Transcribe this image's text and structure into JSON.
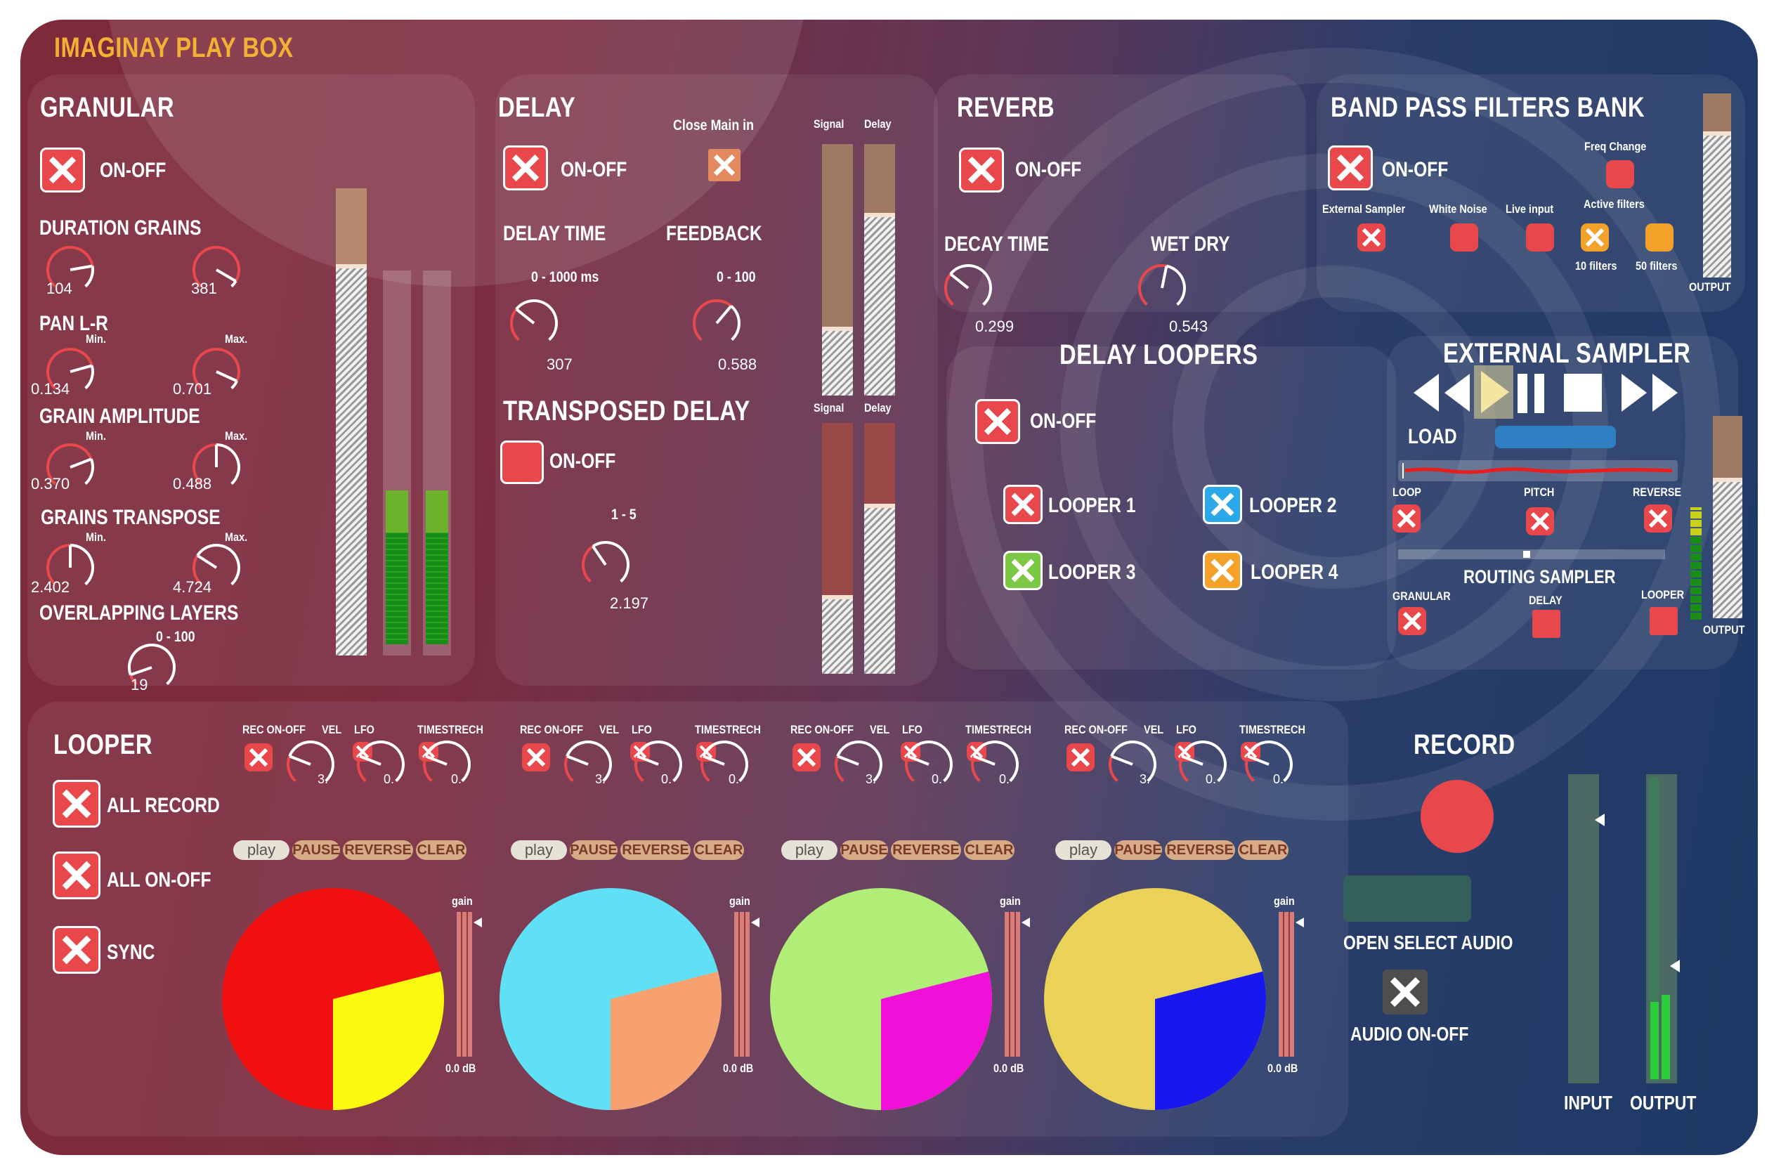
{
  "app_title": "IMAGINAY PLAY BOX",
  "granular": {
    "title": "GRANULAR",
    "on_off": "ON-OFF",
    "duration_grains": "DURATION GRAINS",
    "dur_min": "104",
    "dur_max": "381",
    "pan": "PAN L-R",
    "min": "Min.",
    "max": "Max.",
    "pan_min": "0.134",
    "pan_max": "0.701",
    "grain_amplitude": "GRAIN AMPLITUDE",
    "amp_min": "0.370",
    "amp_max": "0.488",
    "grains_transpose": "GRAINS TRANSPOSE",
    "tr_min": "2.402",
    "tr_max": "4.724",
    "overlapping": "OVERLAPPING LAYERS",
    "overlap_range": "0 - 100",
    "overlap_val": "19"
  },
  "delay": {
    "title": "DELAY",
    "on_off": "ON-OFF",
    "close_main": "Close Main in",
    "delay_time": "DELAY TIME",
    "feedback": "FEEDBACK",
    "time_range": "0 - 1000 ms",
    "fb_range": "0 - 100",
    "time_val": "307",
    "fb_val": "0.588",
    "transposed": "TRANSPOSED DELAY",
    "tr_on_off": "ON-OFF",
    "tr_range": "1 - 5",
    "tr_val": "2.197",
    "signal": "Signal",
    "delay_lbl": "Delay"
  },
  "reverb": {
    "title": "REVERB",
    "on_off": "ON-OFF",
    "decay": "DECAY TIME",
    "wet": "WET DRY",
    "decay_val": "0.299",
    "wet_val": "0.543"
  },
  "bandpass": {
    "title": "BAND PASS FILTERS BANK",
    "on_off": "ON-OFF",
    "freq_change": "Freq Change",
    "external_sampler": "External Sampler",
    "white_noise": "White Noise",
    "live_input": "Live input",
    "active_filters": "Active filters",
    "f10": "10 filters",
    "f50": "50 filters",
    "output": "OUTPUT"
  },
  "delay_loopers": {
    "title": "DELAY LOOPERS",
    "on_off": "ON-OFF",
    "l1": "LOOPER 1",
    "l2": "LOOPER 2",
    "l3": "LOOPER 3",
    "l4": "LOOPER 4"
  },
  "ext_sampler": {
    "title": "EXTERNAL SAMPLER",
    "load": "LOAD",
    "loop": "LOOP",
    "pitch": "PITCH",
    "reverse": "REVERSE",
    "routing": "ROUTING SAMPLER",
    "granular": "GRANULAR",
    "delay": "DELAY",
    "looper": "LOOPER",
    "output": "OUTPUT"
  },
  "looper": {
    "title": "LOOPER",
    "all_record": "ALL RECORD",
    "all_on_off": "ALL ON-OFF",
    "sync": "SYNC",
    "rec": "REC ON-OFF",
    "vel": "VEL",
    "lfo": "LFO",
    "timestrech": "TIMESTRECH",
    "knob_val": "3.",
    "knob_val0": "0.",
    "play": "play",
    "pause": "PAUSE",
    "reverse": "REVERSE",
    "clear": "CLEAR",
    "gain": "gain",
    "db": "0.0 dB",
    "tracks": [
      {
        "main": "#f01010",
        "slice": "#fafa10",
        "frac": 0.29
      },
      {
        "main": "#60e0f5",
        "slice": "#f7a070",
        "frac": 0.29
      },
      {
        "main": "#b0ee78",
        "slice": "#f010d8",
        "frac": 0.29
      },
      {
        "main": "#ead158",
        "slice": "#1818ee",
        "frac": 0.29
      }
    ]
  },
  "record": {
    "title": "RECORD",
    "open_select": "OPEN SELECT AUDIO",
    "audio_on_off": "AUDIO ON-OFF",
    "input": "INPUT",
    "output": "OUTPUT"
  },
  "colors": {
    "accent": "#f2b135",
    "button_red": "#e8484b",
    "blue": "#2aa8e8",
    "green": "#7ac843",
    "orange": "#f4a12a"
  }
}
